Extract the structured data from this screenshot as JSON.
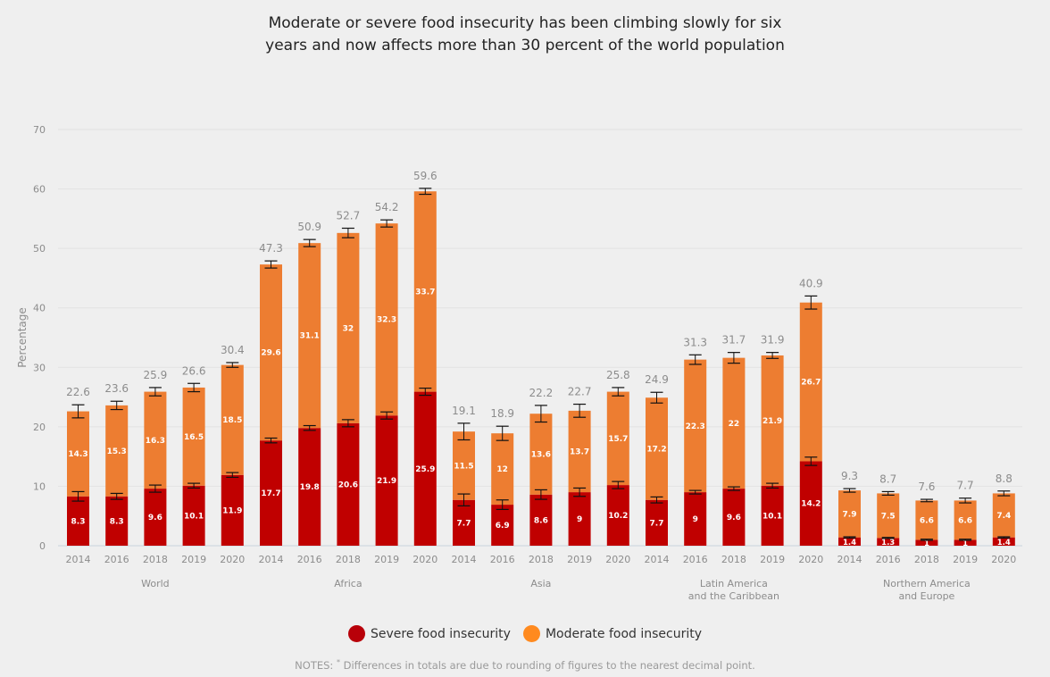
{
  "title_lines": [
    "Moderate or severe food insecurity has been climbing slowly for six",
    "years and now affects more than 30 percent of the world population"
  ],
  "colors": {
    "severe": "#c00000",
    "moderate": "#ed7d31",
    "severe_legend": "#b80009",
    "moderate_legend": "#ff8a1f",
    "grid": "#e2e2e2",
    "axis_text": "#8c8c8c",
    "total_text": "#8c8c8c",
    "inner_label": "#ffffff"
  },
  "legend": [
    {
      "key": "severe",
      "label": "Severe food insecurity"
    },
    {
      "key": "moderate",
      "label": "Moderate food insecurity"
    }
  ],
  "notes": {
    "prefix": "NOTES: ",
    "mark": "*",
    "text": " Differences in totals are due to rounding of figures to the nearest decimal point."
  },
  "chart_data": {
    "type": "bar",
    "stacked": true,
    "title": "Moderate or severe food insecurity has been climbing slowly for six years and now affects more than 30 percent of the world population",
    "xlabel": "",
    "ylabel": "Percentage",
    "ylim": [
      0,
      70
    ],
    "yticks": [
      0,
      10,
      20,
      30,
      40,
      50,
      60,
      70
    ],
    "grid": true,
    "legend_position": "bottom",
    "groups": [
      {
        "label": "World",
        "years": [
          "2014",
          "2016",
          "2018",
          "2019",
          "2020"
        ]
      },
      {
        "label": "Africa",
        "years": [
          "2014",
          "2016",
          "2018",
          "2019",
          "2020"
        ]
      },
      {
        "label": "Asia",
        "years": [
          "2014",
          "2016",
          "2018",
          "2019",
          "2020"
        ]
      },
      {
        "label": "Latin America\nand the Caribbean",
        "years": [
          "2014",
          "2016",
          "2018",
          "2019",
          "2020"
        ]
      },
      {
        "label": "Northern America\nand Europe",
        "years": [
          "2014",
          "2016",
          "2018",
          "2019",
          "2020"
        ]
      }
    ],
    "categories": [
      "2014",
      "2016",
      "2018",
      "2019",
      "2020",
      "2014",
      "2016",
      "2018",
      "2019",
      "2020",
      "2014",
      "2016",
      "2018",
      "2019",
      "2020",
      "2014",
      "2016",
      "2018",
      "2019",
      "2020",
      "2014",
      "2016",
      "2018",
      "2019",
      "2020"
    ],
    "series": [
      {
        "name": "Severe food insecurity",
        "key": "severe",
        "values": [
          8.3,
          8.3,
          9.6,
          10.1,
          11.9,
          17.7,
          19.8,
          20.6,
          21.9,
          25.9,
          7.7,
          6.9,
          8.6,
          9,
          10.2,
          7.7,
          9,
          9.6,
          10.1,
          14.2,
          1.4,
          1.3,
          1,
          1,
          1.4
        ]
      },
      {
        "name": "Moderate food insecurity",
        "key": "moderate",
        "values": [
          14.3,
          15.3,
          16.3,
          16.5,
          18.5,
          29.6,
          31.1,
          32,
          32.3,
          33.7,
          11.5,
          12,
          13.6,
          13.7,
          15.7,
          17.2,
          22.3,
          22,
          21.9,
          26.7,
          7.9,
          7.5,
          6.6,
          6.6,
          7.4
        ]
      }
    ],
    "totals": [
      22.6,
      23.6,
      25.9,
      26.6,
      30.4,
      47.3,
      50.9,
      52.7,
      54.2,
      59.6,
      19.1,
      18.9,
      22.2,
      22.7,
      25.8,
      24.9,
      31.3,
      31.7,
      31.9,
      40.9,
      9.3,
      8.7,
      7.6,
      7.7,
      8.8
    ],
    "error_bars": {
      "severe_halfwidth": [
        0.8,
        0.5,
        0.6,
        0.4,
        0.4,
        0.4,
        0.4,
        0.6,
        0.6,
        0.6,
        1.0,
        0.8,
        0.8,
        0.7,
        0.6,
        0.5,
        0.3,
        0.3,
        0.4,
        0.7,
        0.1,
        0.1,
        0.1,
        0.1,
        0.1
      ],
      "total_halfwidth": [
        1.1,
        0.7,
        0.7,
        0.7,
        0.4,
        0.6,
        0.6,
        0.8,
        0.6,
        0.5,
        1.4,
        1.2,
        1.4,
        1.1,
        0.7,
        0.9,
        0.8,
        0.9,
        0.5,
        1.1,
        0.3,
        0.3,
        0.2,
        0.4,
        0.4
      ]
    }
  }
}
